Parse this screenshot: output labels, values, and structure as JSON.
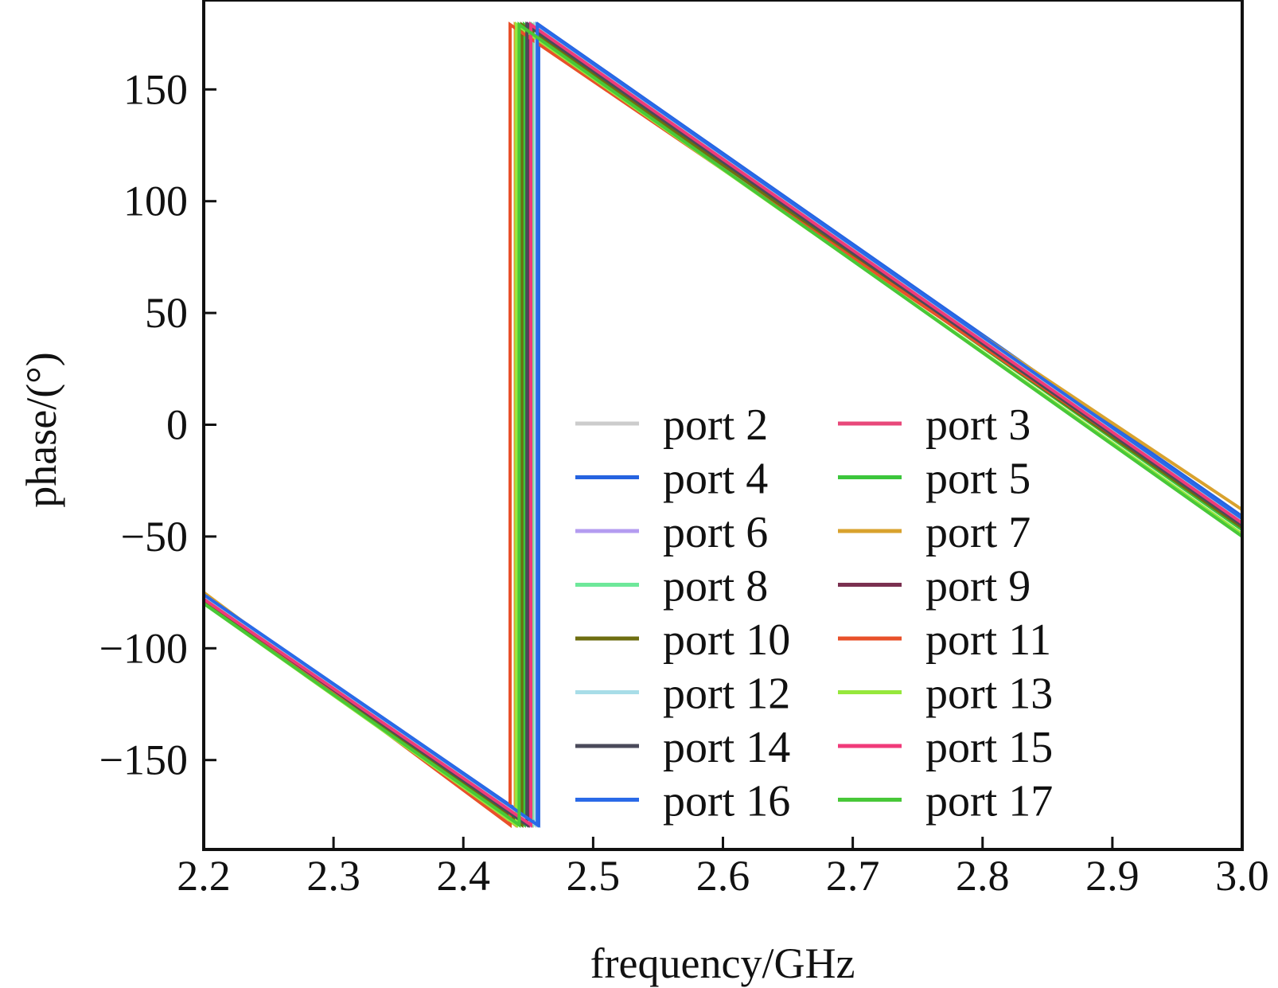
{
  "chart_data": {
    "type": "line",
    "xlabel": "frequency/GHz",
    "ylabel": "phase/(°)",
    "xlim": [
      2.2,
      3.0
    ],
    "ylim": [
      -190,
      190
    ],
    "xticks": [
      2.2,
      2.3,
      2.4,
      2.5,
      2.6,
      2.7,
      2.8,
      2.9,
      3.0
    ],
    "xtick_labels": [
      "2.2",
      "2.3",
      "2.4",
      "2.5",
      "2.6",
      "2.7",
      "2.8",
      "2.9",
      "3.0"
    ],
    "yticks": [
      150,
      100,
      50,
      0,
      -50,
      -100,
      -150
    ],
    "ytick_labels": [
      "150",
      "100",
      "50",
      "0",
      "−50",
      "−100",
      "−150"
    ],
    "grid": false,
    "legend_position": "bottom-right",
    "legend_columns": 2,
    "series": [
      {
        "name": "port 2",
        "color": "#cccccc",
        "points": [
          [
            2.2,
            -76
          ],
          [
            2.455,
            -179
          ],
          [
            2.455,
            179
          ],
          [
            3.0,
            -42
          ]
        ]
      },
      {
        "name": "port 3",
        "color": "#e8487a",
        "points": [
          [
            2.2,
            -77
          ],
          [
            2.452,
            -179
          ],
          [
            2.452,
            179
          ],
          [
            3.0,
            -44
          ]
        ]
      },
      {
        "name": "port 4",
        "color": "#2563e0",
        "points": [
          [
            2.2,
            -76
          ],
          [
            2.458,
            -179
          ],
          [
            2.458,
            179
          ],
          [
            3.0,
            -41
          ]
        ]
      },
      {
        "name": "port 5",
        "color": "#3cc63c",
        "points": [
          [
            2.2,
            -79
          ],
          [
            2.447,
            -179
          ],
          [
            2.447,
            179
          ],
          [
            3.0,
            -47
          ]
        ]
      },
      {
        "name": "port 6",
        "color": "#b49cf0",
        "points": [
          [
            2.2,
            -77
          ],
          [
            2.451,
            -179
          ],
          [
            2.451,
            179
          ],
          [
            3.0,
            -43
          ]
        ]
      },
      {
        "name": "port 7",
        "color": "#d9a22e",
        "points": [
          [
            2.2,
            -75
          ],
          [
            2.44,
            -179
          ],
          [
            2.44,
            179
          ],
          [
            3.0,
            -38
          ]
        ]
      },
      {
        "name": "port 8",
        "color": "#6ee89a",
        "points": [
          [
            2.2,
            -78
          ],
          [
            2.453,
            -179
          ],
          [
            2.453,
            179
          ],
          [
            3.0,
            -45
          ]
        ]
      },
      {
        "name": "port 9",
        "color": "#7a3050",
        "points": [
          [
            2.2,
            -78
          ],
          [
            2.45,
            -179
          ],
          [
            2.45,
            179
          ],
          [
            3.0,
            -45
          ]
        ]
      },
      {
        "name": "port 10",
        "color": "#6e6e10",
        "points": [
          [
            2.2,
            -79
          ],
          [
            2.445,
            -179
          ],
          [
            2.445,
            179
          ],
          [
            3.0,
            -46
          ]
        ]
      },
      {
        "name": "port 11",
        "color": "#e8502a",
        "points": [
          [
            2.2,
            -77
          ],
          [
            2.436,
            -179
          ],
          [
            2.436,
            179
          ],
          [
            3.0,
            -44
          ]
        ]
      },
      {
        "name": "port 12",
        "color": "#a8dde8",
        "points": [
          [
            2.2,
            -77
          ],
          [
            2.456,
            -179
          ],
          [
            2.456,
            179
          ],
          [
            3.0,
            -43
          ]
        ]
      },
      {
        "name": "port 13",
        "color": "#96e83c",
        "points": [
          [
            2.2,
            -80
          ],
          [
            2.441,
            -179
          ],
          [
            2.441,
            179
          ],
          [
            3.0,
            -49
          ]
        ]
      },
      {
        "name": "port 14",
        "color": "#4a4a5a",
        "points": [
          [
            2.2,
            -78
          ],
          [
            2.449,
            -179
          ],
          [
            2.449,
            179
          ],
          [
            3.0,
            -45
          ]
        ]
      },
      {
        "name": "port 15",
        "color": "#f03a7a",
        "points": [
          [
            2.2,
            -78
          ],
          [
            2.452,
            -179
          ],
          [
            2.452,
            179
          ],
          [
            3.0,
            -44
          ]
        ]
      },
      {
        "name": "port 16",
        "color": "#2a6ae8",
        "points": [
          [
            2.2,
            -76
          ],
          [
            2.457,
            -179
          ],
          [
            2.457,
            179
          ],
          [
            3.0,
            -42
          ]
        ]
      },
      {
        "name": "port 17",
        "color": "#48c838",
        "points": [
          [
            2.2,
            -80
          ],
          [
            2.443,
            -179
          ],
          [
            2.443,
            179
          ],
          [
            3.0,
            -50
          ]
        ]
      }
    ]
  }
}
